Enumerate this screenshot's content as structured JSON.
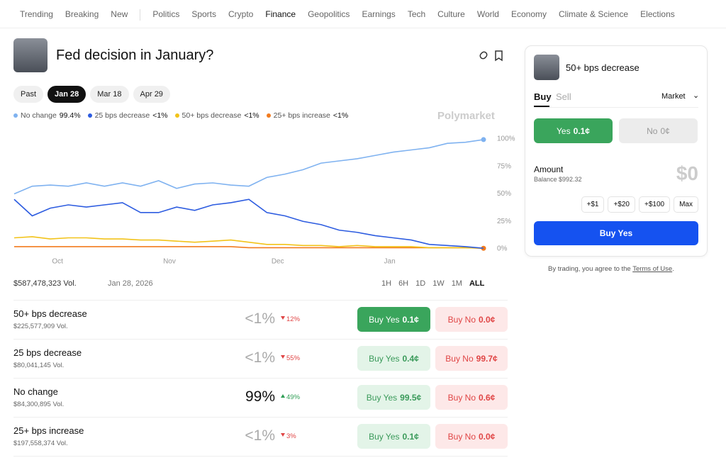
{
  "nav": {
    "items": [
      "Trending",
      "Breaking",
      "New",
      "Politics",
      "Sports",
      "Crypto",
      "Finance",
      "Geopolitics",
      "Earnings",
      "Tech",
      "Culture",
      "World",
      "Economy",
      "Climate & Science",
      "Elections"
    ],
    "active": 6
  },
  "header": {
    "title": "Fed decision in January?"
  },
  "date_tabs": {
    "items": [
      "Past",
      "Jan 28",
      "Mar 18",
      "Apr 29"
    ],
    "active": 1
  },
  "chart": {
    "type": "line",
    "brand": "Polymarket",
    "x": [
      0,
      5,
      10,
      15,
      20,
      25,
      30,
      35,
      40,
      45,
      50,
      55,
      60,
      65,
      70,
      75,
      80,
      85,
      90,
      95,
      100,
      105,
      110,
      115,
      120,
      125,
      130
    ],
    "xlim": [
      0,
      130
    ],
    "xticks": [
      {
        "value": 12,
        "label": "Oct"
      },
      {
        "value": 43,
        "label": "Nov"
      },
      {
        "value": 73,
        "label": "Dec"
      },
      {
        "value": 104,
        "label": "Jan"
      }
    ],
    "ylim": [
      0,
      100
    ],
    "yticks": [
      {
        "value": 0,
        "label": "0%"
      },
      {
        "value": 25,
        "label": "25%"
      },
      {
        "value": 50,
        "label": "50%"
      },
      {
        "value": 75,
        "label": "75%"
      },
      {
        "value": 100,
        "label": "100%"
      }
    ],
    "series": [
      {
        "name": "No change",
        "label": "99.4%",
        "color": "#7fb2f0",
        "values": [
          50,
          57,
          58,
          57,
          60,
          57,
          60,
          57,
          62,
          55,
          59,
          60,
          58,
          57,
          65,
          68,
          72,
          78,
          80,
          82,
          85,
          88,
          90,
          92,
          96,
          97,
          99.4
        ]
      },
      {
        "name": "25 bps decrease",
        "label": "<1%",
        "color": "#2d5ce0",
        "values": [
          45,
          30,
          37,
          40,
          38,
          40,
          42,
          33,
          33,
          38,
          35,
          40,
          42,
          45,
          33,
          30,
          25,
          22,
          17,
          15,
          12,
          10,
          8,
          4,
          3,
          2,
          0.5
        ]
      },
      {
        "name": "50+ bps decrease",
        "label": "<1%",
        "color": "#f2c31a",
        "values": [
          10,
          11,
          9,
          10,
          10,
          9,
          9,
          8,
          8,
          7,
          6,
          7,
          8,
          6,
          4,
          4,
          3,
          3,
          2,
          3,
          2,
          2,
          2,
          1,
          1,
          1,
          0.5
        ]
      },
      {
        "name": "25+ bps increase",
        "label": "<1%",
        "color": "#f27b1f",
        "values": [
          2,
          2,
          2,
          2,
          2,
          2,
          2,
          2,
          2,
          2,
          2,
          2,
          2,
          1,
          1,
          1,
          1,
          1,
          1,
          1,
          1,
          1,
          1,
          1,
          1,
          1,
          0.5
        ]
      }
    ]
  },
  "toolbar": {
    "volume": "$587,478,323 Vol.",
    "date": "Jan 28, 2026",
    "ranges": [
      "1H",
      "6H",
      "1D",
      "1W",
      "1M",
      "ALL"
    ],
    "active_range": 5
  },
  "outcomes": [
    {
      "name": "50+ bps decrease",
      "volume": "$225,577,909 Vol.",
      "probability": "<1%",
      "change": "12%",
      "trend": "down",
      "buy_yes": "Buy Yes",
      "yes_price": "0.1¢",
      "buy_no": "Buy No",
      "no_price": "0.0¢",
      "selected": true
    },
    {
      "name": "25 bps decrease",
      "volume": "$80,041,145 Vol.",
      "probability": "<1%",
      "change": "55%",
      "trend": "down",
      "buy_yes": "Buy Yes",
      "yes_price": "0.4¢",
      "buy_no": "Buy No",
      "no_price": "99.7¢",
      "selected": false
    },
    {
      "name": "No change",
      "volume": "$84,300,895 Vol.",
      "probability": "99%",
      "change": "49%",
      "trend": "up",
      "buy_yes": "Buy Yes",
      "yes_price": "99.5¢",
      "buy_no": "Buy No",
      "no_price": "0.6¢",
      "selected": false
    },
    {
      "name": "25+ bps increase",
      "volume": "$197,558,374 Vol.",
      "probability": "<1%",
      "change": "3%",
      "trend": "down",
      "buy_yes": "Buy Yes",
      "yes_price": "0.1¢",
      "buy_no": "Buy No",
      "no_price": "0.0¢",
      "selected": false
    }
  ],
  "trade_panel": {
    "title": "50+ bps decrease",
    "tabs": [
      "Buy",
      "Sell"
    ],
    "order_type": "Market",
    "yes_label": "Yes",
    "yes_price": "0.1¢",
    "no_label": "No",
    "no_price": "0¢",
    "amount_label": "Amount",
    "balance": "Balance $992.32",
    "amount": "$0",
    "increments": [
      "+$1",
      "+$20",
      "+$100",
      "Max"
    ],
    "submit": "Buy Yes"
  },
  "disclaimer": {
    "prefix": "By trading, you agree to the",
    "link": "Terms of Use",
    "suffix": "."
  }
}
